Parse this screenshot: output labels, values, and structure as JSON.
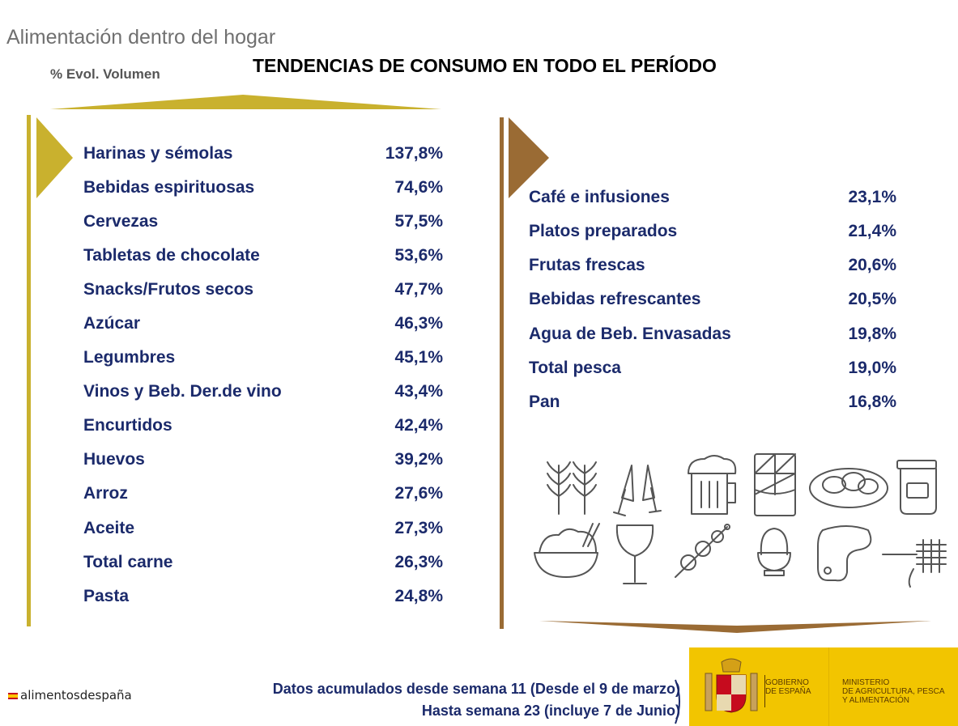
{
  "header": {
    "section_title": "Alimentación dentro del hogar",
    "metric_label": "% Evol. Volumen",
    "title": "TENDENCIAS DE CONSUMO EN TODO EL PERÍODO"
  },
  "left_items": [
    {
      "name": "Harinas y sémolas",
      "value": "137,8%"
    },
    {
      "name": "Bebidas espirituosas",
      "value": "74,6%"
    },
    {
      "name": "Cervezas",
      "value": "57,5%"
    },
    {
      "name": "Tabletas de chocolate",
      "value": "53,6%"
    },
    {
      "name": "Snacks/Frutos secos",
      "value": "47,7%"
    },
    {
      "name": "Azúcar",
      "value": "46,3%"
    },
    {
      "name": "Legumbres",
      "value": "45,1%"
    },
    {
      "name": "Vinos y Beb. Der.de vino",
      "value": "43,4%"
    },
    {
      "name": "Encurtidos",
      "value": "42,4%"
    },
    {
      "name": "Huevos",
      "value": "39,2%"
    },
    {
      "name": "Arroz",
      "value": "27,6%"
    },
    {
      "name": "Aceite",
      "value": "27,3%"
    },
    {
      "name": "Total carne",
      "value": "26,3%"
    },
    {
      "name": "Pasta",
      "value": "24,8%"
    }
  ],
  "right_items": [
    {
      "name": "Café e infusiones",
      "value": "23,1%"
    },
    {
      "name": "Platos preparados",
      "value": "21,4%"
    },
    {
      "name": "Frutas frescas",
      "value": "20,6%"
    },
    {
      "name": "Bebidas refrescantes",
      "value": "20,5%"
    },
    {
      "name": "Agua de Beb. Envasadas",
      "value": "19,8%"
    },
    {
      "name": "Total pesca",
      "value": "19,0%"
    },
    {
      "name": "Pan",
      "value": "16,8%"
    }
  ],
  "footer": {
    "line1": "Datos acumulados desde semana 11 (Desde el 9 de marzo)",
    "line2": "Hasta semana 23 (incluye 7 de Junio)",
    "brand": "alimentosdespaña",
    "gov_label_1": "Gobierno",
    "gov_label_2": "de España",
    "ministry_1": "Ministerio",
    "ministry_2": "de Agricultura, Pesca",
    "ministry_3": "y Alimentación"
  },
  "icons": [
    "wheat-icon",
    "toast-glasses-icon",
    "beer-mug-icon",
    "chocolate-bar-icon",
    "nuts-bowl-icon",
    "jar-icon",
    "rice-bowl-icon",
    "wine-glass-icon",
    "skewer-icon",
    "egg-cup-icon",
    "steak-icon",
    "pasta-fork-icon"
  ],
  "colors": {
    "left_accent": "#c9b12e",
    "right_accent": "#9a6b34",
    "text_navy": "#1b2a6b",
    "gov_yellow": "#f2c500"
  }
}
